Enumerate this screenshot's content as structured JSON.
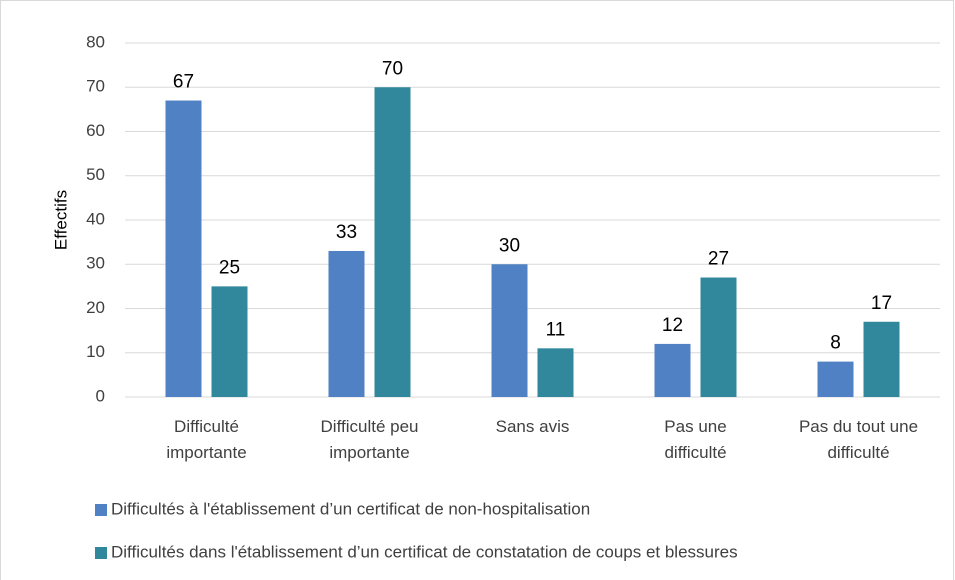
{
  "chart_data": {
    "type": "bar",
    "y_label": "Effectifs",
    "categories": [
      "Difficulté importante",
      "Difficulté peu importante",
      "Sans avis",
      "Pas une difficulté",
      "Pas du tout une difficulté"
    ],
    "series": [
      {
        "name": "Difficultés à l'établissement d’un certificat de non-hospitalisation",
        "color": "#4f81c4",
        "values": [
          67,
          33,
          30,
          12,
          8
        ]
      },
      {
        "name": "Difficultés dans l'établissement d’un certificat de constatation de coups et blessures",
        "color": "#31879b",
        "values": [
          25,
          70,
          11,
          27,
          17
        ]
      }
    ],
    "ylim": [
      0,
      80
    ],
    "yticks": [
      0,
      10,
      20,
      30,
      40,
      50,
      60,
      70,
      80
    ],
    "grid": true,
    "legend": "bottom"
  }
}
